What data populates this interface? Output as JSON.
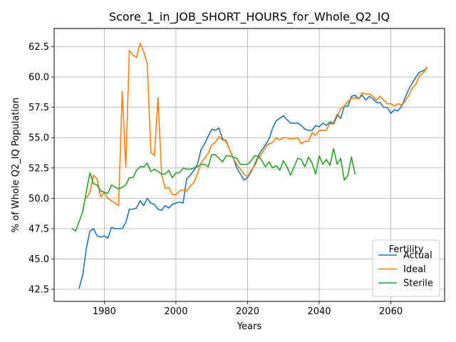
{
  "chart_data": {
    "type": "line",
    "title": "Score_1_in_JOB_SHORT_HOURS_for_Whole_Q2_IQ",
    "xlabel": "Years",
    "ylabel": "% of Whole Q2_IQ Population",
    "xlim": [
      1966,
      2075
    ],
    "ylim": [
      41.5,
      64.0
    ],
    "xticks": [
      1980,
      2000,
      2020,
      2040,
      2060
    ],
    "yticks": [
      42.5,
      45.0,
      47.5,
      50.0,
      52.5,
      55.0,
      57.5,
      60.0,
      62.5
    ],
    "xtick_labels": [
      "1980",
      "2000",
      "2020",
      "2040",
      "2060"
    ],
    "ytick_labels": [
      "42.5",
      "45.0",
      "47.5",
      "50.0",
      "52.5",
      "55.0",
      "57.5",
      "60.0",
      "62.5"
    ],
    "grid": true,
    "legend": {
      "title": "Fertility",
      "position": "lower-right"
    },
    "series": [
      {
        "name": "Actual",
        "color": "#1f77b4",
        "x": [
          1973,
          1974,
          1975,
          1976,
          1977,
          1978,
          1979,
          1980,
          1981,
          1982,
          1983,
          1984,
          1985,
          1986,
          1987,
          1988,
          1989,
          1990,
          1991,
          1992,
          1993,
          1994,
          1995,
          1996,
          1997,
          1998,
          1999,
          2000,
          2001,
          2002,
          2003,
          2004,
          2005,
          2006,
          2007,
          2008,
          2009,
          2010,
          2011,
          2012,
          2013,
          2014,
          2015,
          2016,
          2017,
          2018,
          2019,
          2020,
          2021,
          2022,
          2023,
          2024,
          2025,
          2026,
          2027,
          2028,
          2029,
          2030,
          2031,
          2032,
          2033,
          2034,
          2035,
          2036,
          2037,
          2038,
          2039,
          2040,
          2041,
          2042,
          2043,
          2044,
          2045,
          2046,
          2047,
          2048,
          2049,
          2050,
          2051,
          2052,
          2053,
          2054,
          2055,
          2056,
          2057,
          2058,
          2059,
          2060,
          2061,
          2062,
          2063,
          2064,
          2065,
          2066,
          2067,
          2068,
          2069,
          2070
        ],
        "y": [
          42.6,
          43.7,
          45.9,
          47.3,
          47.5,
          46.9,
          46.8,
          46.9,
          46.7,
          47.6,
          47.5,
          47.5,
          47.5,
          48.0,
          49.1,
          49.1,
          49.2,
          49.8,
          49.4,
          50.0,
          49.6,
          49.5,
          49.1,
          49.0,
          49.4,
          49.2,
          49.5,
          49.6,
          49.7,
          49.6,
          51.6,
          51.9,
          52.3,
          52.8,
          54.0,
          54.5,
          55.1,
          55.7,
          55.6,
          55.8,
          54.9,
          54.7,
          54.0,
          53.3,
          52.5,
          52.0,
          51.5,
          51.7,
          52.2,
          52.8,
          53.5,
          54.0,
          54.4,
          54.9,
          55.8,
          56.4,
          56.6,
          56.8,
          56.5,
          56.2,
          56.2,
          56.2,
          56.0,
          55.7,
          55.6,
          55.6,
          56.0,
          55.9,
          56.2,
          56.0,
          56.3,
          56.2,
          56.9,
          56.6,
          57.6,
          57.6,
          58.4,
          58.5,
          58.2,
          58.5,
          58.1,
          58.4,
          58.2,
          57.9,
          57.9,
          57.5,
          57.5,
          57.0,
          57.3,
          57.2,
          57.6,
          58.3,
          59.0,
          59.5,
          60.0,
          60.4,
          60.5,
          60.7
        ]
      },
      {
        "name": "Ideal",
        "color": "#ff7f0e",
        "x": [
          1975,
          1976,
          1977,
          1978,
          1979,
          1980,
          1981,
          1982,
          1983,
          1984,
          1985,
          1986,
          1987,
          1988,
          1989,
          1990,
          1991,
          1992,
          1993,
          1994,
          1995,
          1996,
          1997,
          1998,
          1999,
          2000,
          2001,
          2002,
          2003,
          2004,
          2005,
          2006,
          2007,
          2008,
          2009,
          2010,
          2011,
          2012,
          2013,
          2014,
          2015,
          2016,
          2017,
          2018,
          2019,
          2020,
          2021,
          2022,
          2023,
          2024,
          2025,
          2026,
          2027,
          2028,
          2029,
          2030,
          2031,
          2032,
          2033,
          2034,
          2035,
          2036,
          2037,
          2038,
          2039,
          2040,
          2041,
          2042,
          2043,
          2044,
          2045,
          2046,
          2047,
          2048,
          2049,
          2050,
          2051,
          2052,
          2053,
          2054,
          2055,
          2056,
          2057,
          2058,
          2059,
          2060,
          2061,
          2062,
          2063,
          2064,
          2065,
          2066,
          2067,
          2068,
          2069,
          2070
        ],
        "y": [
          50.0,
          50.5,
          51.9,
          51.6,
          50.1,
          50.5,
          50.0,
          49.8,
          49.6,
          49.4,
          58.8,
          52.6,
          62.2,
          61.8,
          61.6,
          62.8,
          62.1,
          61.1,
          53.8,
          53.5,
          58.3,
          52.0,
          50.8,
          50.9,
          50.3,
          50.3,
          50.6,
          50.7,
          50.6,
          51.0,
          51.3,
          52.0,
          52.9,
          53.3,
          53.7,
          54.4,
          54.6,
          55.1,
          54.8,
          54.8,
          54.0,
          53.3,
          52.8,
          52.4,
          52.0,
          51.8,
          52.3,
          52.7,
          53.3,
          53.7,
          54.2,
          54.5,
          54.6,
          55.0,
          54.8,
          55.0,
          55.0,
          54.9,
          54.9,
          55.0,
          54.5,
          54.7,
          54.7,
          55.4,
          55.2,
          55.6,
          55.6,
          55.6,
          56.2,
          56.1,
          56.7,
          57.4,
          57.6,
          58.0,
          58.2,
          58.3,
          58.2,
          58.7,
          58.6,
          58.6,
          58.4,
          58.1,
          58.4,
          58.1,
          57.8,
          57.8,
          57.6,
          57.8,
          57.7,
          58.0,
          58.5,
          59.1,
          59.4,
          60.1,
          60.3,
          60.8
        ]
      },
      {
        "name": "Sterile",
        "color": "#2ca02c",
        "x": [
          1971,
          1972,
          1973,
          1974,
          1975,
          1976,
          1977,
          1978,
          1979,
          1980,
          1981,
          1982,
          1983,
          1984,
          1985,
          1986,
          1987,
          1988,
          1989,
          1990,
          1991,
          1992,
          1993,
          1994,
          1995,
          1996,
          1997,
          1998,
          1999,
          2000,
          2001,
          2002,
          2003,
          2004,
          2005,
          2006,
          2007,
          2008,
          2009,
          2010,
          2011,
          2012,
          2013,
          2014,
          2015,
          2016,
          2017,
          2018,
          2019,
          2020,
          2021,
          2022,
          2023,
          2024,
          2025,
          2026,
          2027,
          2028,
          2029,
          2030,
          2031,
          2032,
          2033,
          2034,
          2035,
          2036,
          2037,
          2038,
          2039,
          2040,
          2041,
          2042,
          2043,
          2044,
          2045,
          2046,
          2047,
          2048,
          2049,
          2050
        ],
        "y": [
          47.5,
          47.3,
          48.1,
          48.9,
          50.6,
          52.1,
          51.2,
          51.1,
          50.6,
          50.5,
          50.4,
          51.1,
          50.9,
          50.8,
          50.9,
          51.1,
          51.7,
          51.7,
          52.3,
          52.6,
          52.6,
          52.9,
          52.2,
          52.4,
          52.2,
          52.0,
          52.0,
          52.3,
          51.7,
          52.1,
          52.1,
          52.5,
          52.4,
          52.4,
          52.5,
          52.6,
          52.8,
          52.8,
          52.6,
          53.6,
          53.6,
          53.3,
          53.0,
          53.5,
          53.5,
          53.4,
          53.3,
          52.8,
          52.8,
          52.8,
          53.1,
          53.5,
          53.5,
          53.1,
          52.6,
          53.0,
          52.5,
          52.7,
          52.3,
          53.1,
          52.6,
          51.9,
          52.6,
          53.3,
          53.2,
          52.6,
          53.4,
          52.9,
          52.0,
          53.5,
          52.8,
          53.2,
          52.7,
          54.1,
          52.8,
          53.3,
          51.5,
          51.9,
          53.4,
          52.0
        ]
      }
    ]
  }
}
